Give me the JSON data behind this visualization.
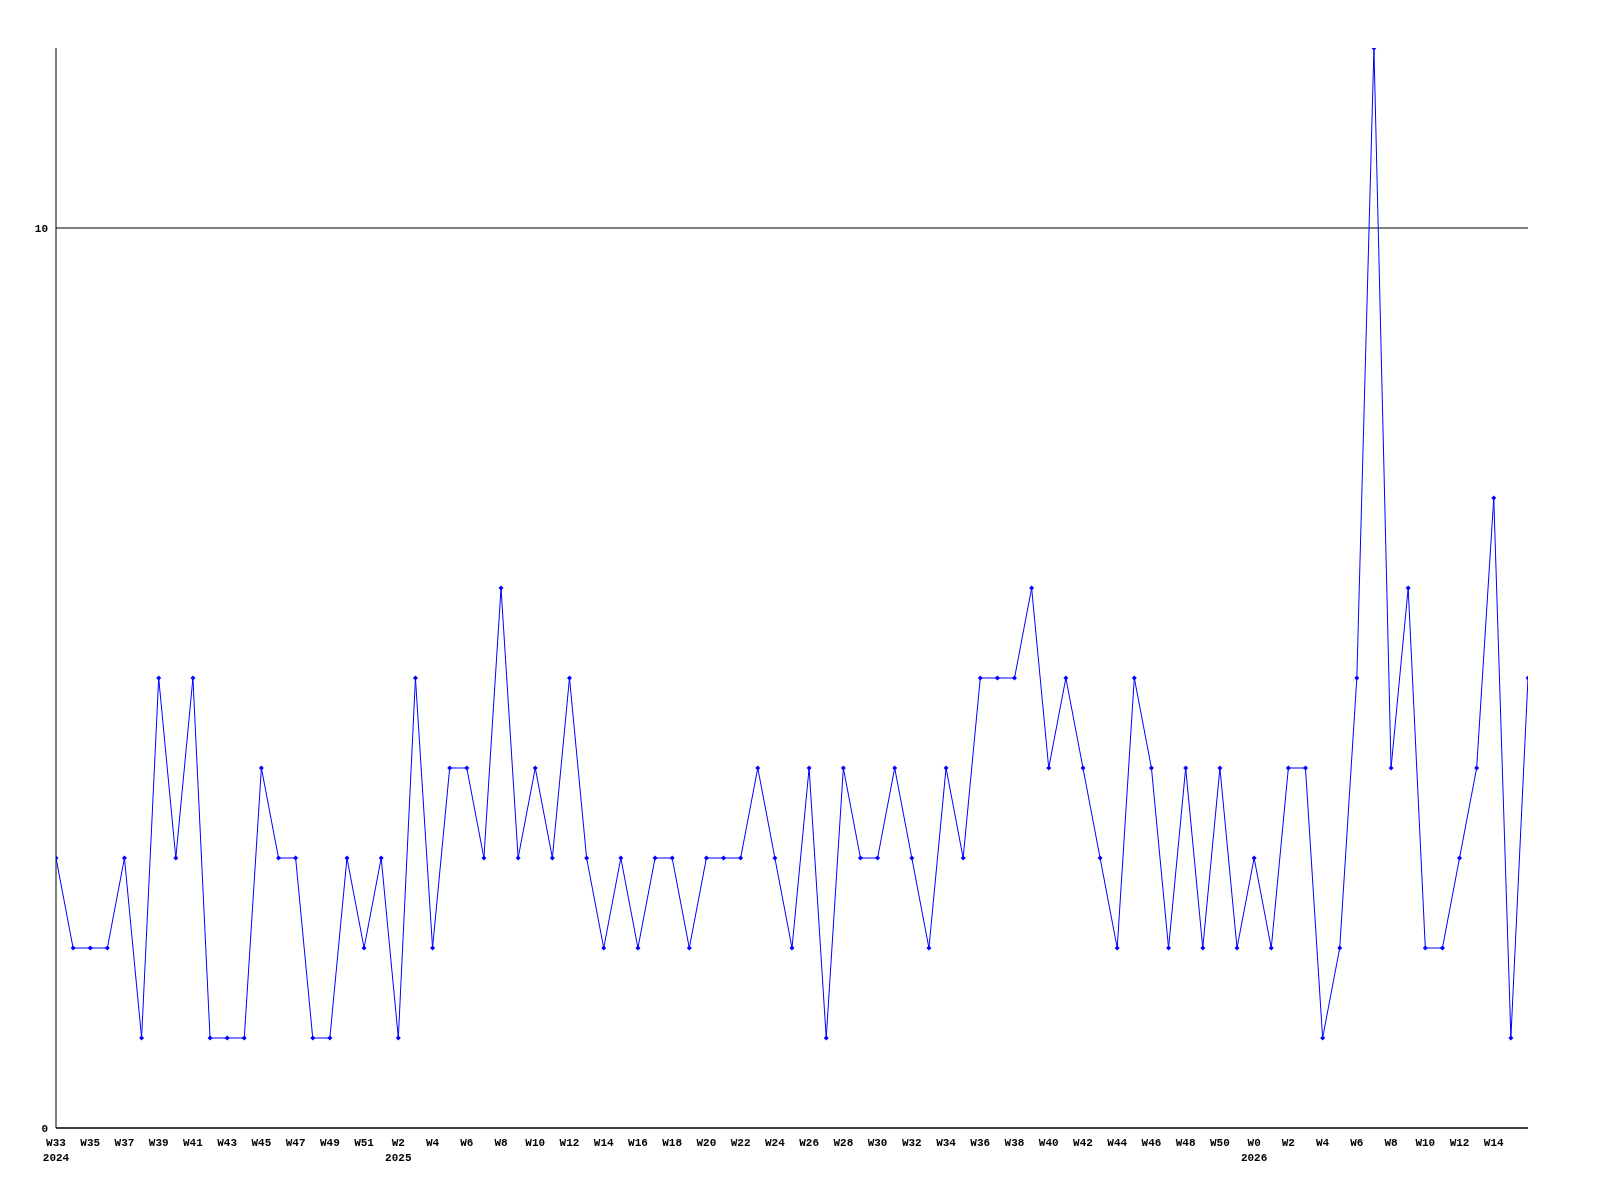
{
  "chart_data": {
    "type": "line",
    "categories": [
      "W33\n2024",
      null,
      "W35",
      null,
      "W37",
      null,
      "W39",
      null,
      "W41",
      null,
      "W43",
      null,
      "W45",
      null,
      "W47",
      null,
      "W49",
      null,
      "W51",
      null,
      "W2\n2025",
      null,
      "W4",
      null,
      "W6",
      null,
      "W8",
      null,
      "W10",
      null,
      "W12",
      null,
      "W14",
      null,
      "W16",
      null,
      "W18",
      null,
      "W20",
      null,
      "W22",
      null,
      "W24",
      null,
      "W26",
      null,
      "W28",
      null,
      "W30",
      null,
      "W32",
      null,
      "W34",
      null,
      "W36",
      null,
      "W38",
      null,
      "W40",
      null,
      "W42",
      null,
      "W44",
      null,
      "W46",
      null,
      "W48",
      null,
      "W50",
      null,
      "W0\n2026",
      null,
      "W2",
      null,
      "W4",
      null,
      "W6",
      null,
      "W8",
      null,
      "W10",
      null,
      "W12",
      null,
      "W14",
      null,
      null
    ],
    "series": [
      {
        "color": "#0000ff",
        "values": [
          3,
          2,
          2,
          2,
          3,
          1,
          5,
          3,
          5,
          1,
          1,
          1,
          4,
          3,
          3,
          1,
          1,
          3,
          2,
          3,
          1,
          5,
          2,
          4,
          4,
          3,
          6,
          3,
          4,
          3,
          5,
          3,
          2,
          3,
          2,
          3,
          3,
          2,
          3,
          3,
          3,
          4,
          3,
          2,
          4,
          1,
          4,
          3,
          3,
          4,
          3,
          2,
          4,
          3,
          5,
          5,
          5,
          6,
          4,
          5,
          4,
          3,
          2,
          5,
          4,
          2,
          4,
          2,
          4,
          2,
          3,
          2,
          4,
          4,
          1,
          2,
          5,
          12,
          4,
          6,
          2,
          2,
          3,
          4,
          7,
          1,
          5
        ]
      }
    ],
    "ylim": [
      0,
      12
    ],
    "yticks": [
      0,
      10
    ],
    "grid": "y",
    "marker": "diamond",
    "line_style": "solid"
  }
}
